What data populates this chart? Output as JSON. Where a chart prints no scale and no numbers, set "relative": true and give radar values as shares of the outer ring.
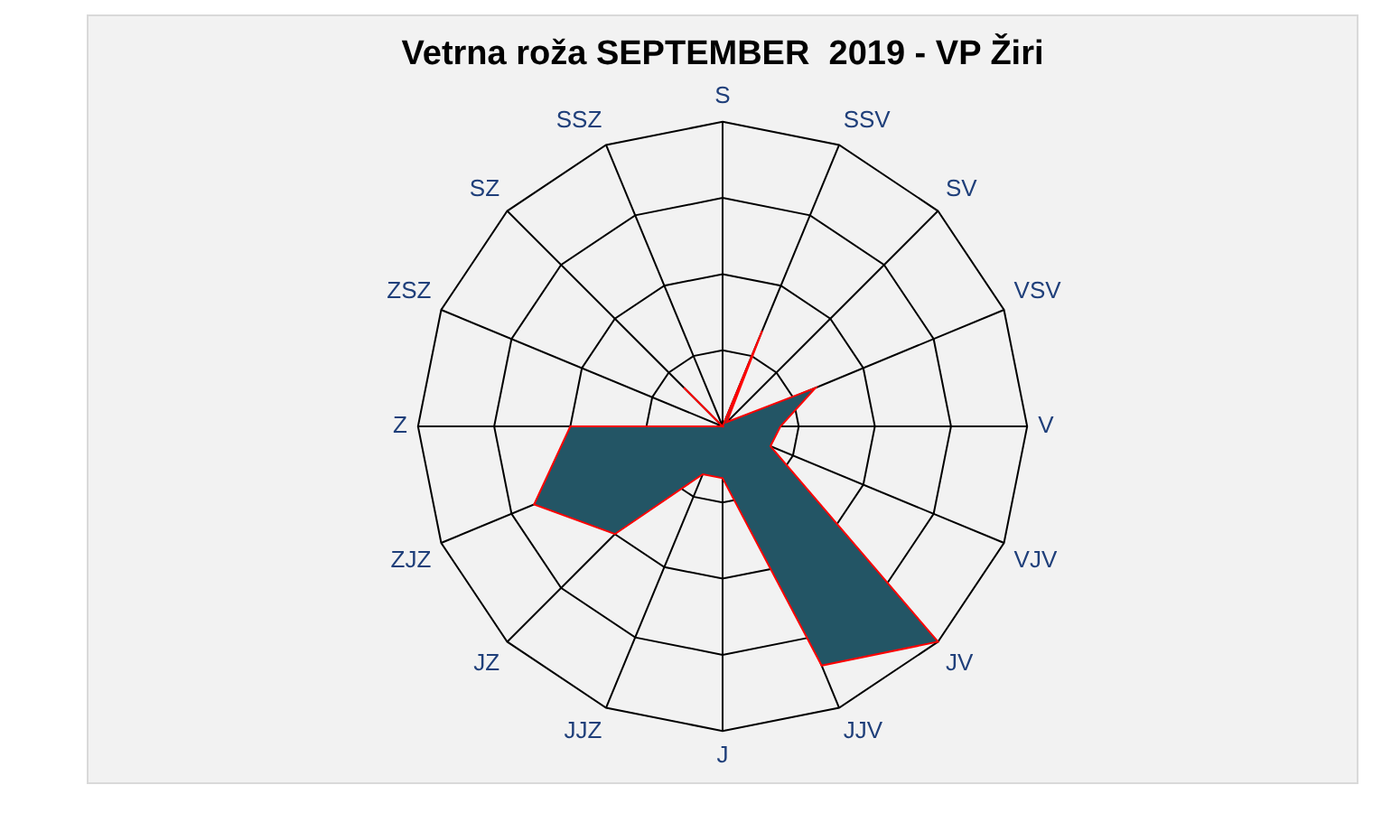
{
  "chart_data": {
    "type": "radar",
    "title": "Vetrna roža SEPTEMBER  2019 - VP Žiri",
    "relative": true,
    "grid": true,
    "legend": false,
    "marker": "none",
    "categories": [
      "S",
      "SSV",
      "SV",
      "VSV",
      "V",
      "VJV",
      "JV",
      "JJV",
      "J",
      "JJZ",
      "JZ",
      "ZJZ",
      "Z",
      "ZSZ",
      "SZ",
      "SSZ"
    ],
    "series": [
      {
        "color": "#235565",
        "values": [
          0,
          0.34,
          0.02,
          0.33,
          0.19,
          0.17,
          1,
          0.85,
          0.17,
          0.17,
          0.5,
          0.67,
          0.5,
          0,
          0.18,
          0
        ]
      }
    ]
  }
}
